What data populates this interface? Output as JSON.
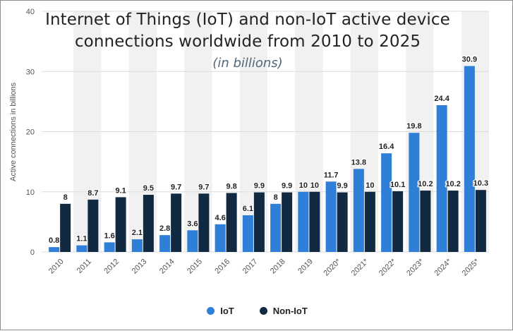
{
  "chart_data": {
    "type": "bar",
    "title": "Internet of Things (IoT) and non-IoT active device connections worldwide from 2010 to 2025",
    "subtitle": "(in billions)",
    "xlabel": "",
    "ylabel": "Active connections in billions",
    "ylim": [
      0,
      40
    ],
    "yticks": [
      0,
      10,
      20,
      30,
      40
    ],
    "grid": true,
    "legend_position": "bottom",
    "categories": [
      "2010",
      "2011",
      "2012",
      "2013",
      "2014",
      "2015",
      "2016",
      "2017",
      "2018",
      "2019",
      "2020*",
      "2021*",
      "2022*",
      "2023*",
      "2024*",
      "2025*"
    ],
    "series": [
      {
        "name": "IoT",
        "color": "#2f7ed8",
        "values": [
          0.8,
          1.1,
          1.6,
          2.1,
          2.8,
          3.6,
          4.6,
          6.1,
          8,
          10,
          11.7,
          13.8,
          16.4,
          19.8,
          24.4,
          30.9
        ]
      },
      {
        "name": "Non-IoT",
        "color": "#112a42",
        "values": [
          8,
          8.7,
          9.1,
          9.5,
          9.7,
          9.7,
          9.8,
          9.9,
          9.9,
          10,
          9.9,
          10,
          10.1,
          10.2,
          10.2,
          10.3
        ]
      }
    ],
    "data_labels": {
      "IoT": [
        "0.8",
        "1.1",
        "1.6",
        "2.1",
        "2.8",
        "3.6",
        "4.6",
        "6.1",
        "8",
        "10",
        "11.7",
        "13.8",
        "16.4",
        "19.8",
        "24.4",
        "30.9"
      ],
      "Non-IoT": [
        "8",
        "8.7",
        "9.1",
        "9.5",
        "9.7",
        "9.7",
        "9.8",
        "9.9",
        "9.9",
        "10",
        "9.9",
        "10",
        "10.1",
        "10.2",
        "10.2",
        "10.3"
      ]
    }
  },
  "legend": {
    "iot_label": "IoT",
    "noniot_label": "Non-IoT"
  }
}
